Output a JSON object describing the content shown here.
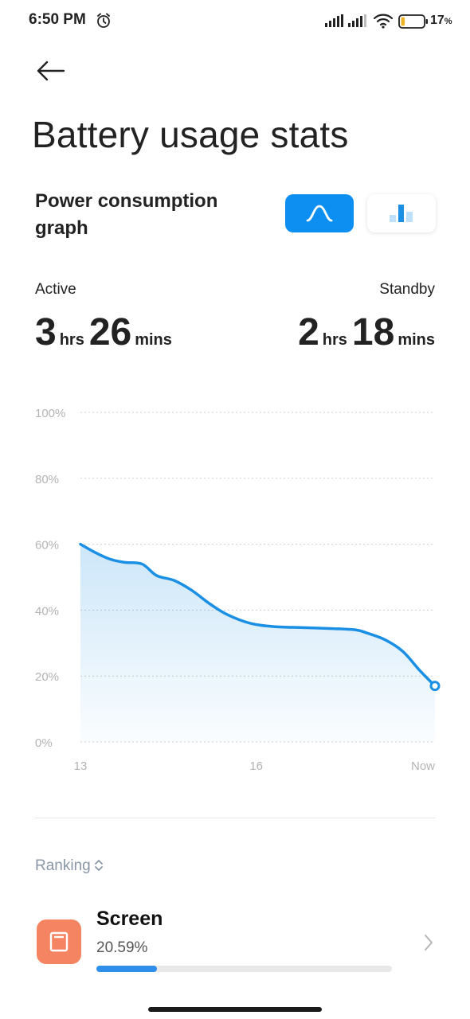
{
  "status_bar": {
    "time": "6:50 PM",
    "battery_percent": "17",
    "battery_percent_sign": "%",
    "battery_level": 0.17,
    "icons": [
      "alarm-icon",
      "signal-icon",
      "signal-icon",
      "wifi-icon",
      "battery-icon"
    ]
  },
  "header": {
    "title": "Battery usage stats",
    "back_icon": "back-arrow-icon"
  },
  "graph_section": {
    "title": "Power consumption graph",
    "toggles": [
      {
        "name": "line-graph",
        "icon": "line-curve-icon",
        "selected": true
      },
      {
        "name": "bar-graph",
        "icon": "bar-chart-icon",
        "selected": false
      }
    ],
    "accent_color": "#0d8ff2"
  },
  "usage": {
    "active": {
      "label": "Active",
      "hours": "3",
      "hours_unit": "hrs",
      "minutes": "26",
      "minutes_unit": "mins"
    },
    "standby": {
      "label": "Standby",
      "hours": "2",
      "hours_unit": "hrs",
      "minutes": "18",
      "minutes_unit": "mins"
    }
  },
  "chart_data": {
    "type": "area",
    "x_tick_labels": [
      "13",
      "16",
      "Now"
    ],
    "y_tick_labels": [
      "100%",
      "80%",
      "60%",
      "40%",
      "20%",
      "0%"
    ],
    "ylim": [
      0,
      100
    ],
    "grid": true,
    "line_color": "#1a8fe3",
    "x": [
      13,
      13.25,
      13.5,
      13.75,
      14.05,
      14.3,
      14.6,
      14.9,
      15.2,
      15.5,
      15.9,
      16.3,
      16.8,
      17.3,
      17.7,
      17.9,
      18.2,
      18.5,
      18.8,
      19.05
    ],
    "values": [
      60,
      57.5,
      55.5,
      54.5,
      54,
      50.5,
      49,
      46,
      42,
      38.7,
      36,
      35,
      34.7,
      34.4,
      34,
      33,
      31,
      27.5,
      21.5,
      17
    ]
  },
  "ranking": {
    "label": "Ranking",
    "items": [
      {
        "name": "Screen",
        "percent": "20.59%",
        "fraction": 0.2059,
        "icon": "screen-icon",
        "icon_color": "#f58462"
      }
    ]
  }
}
